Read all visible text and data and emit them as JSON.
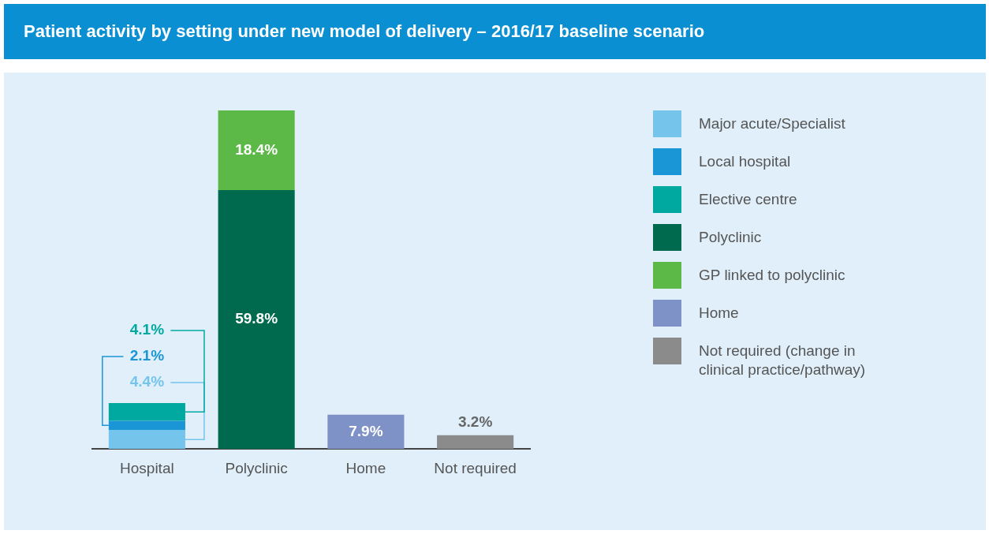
{
  "chart_data": {
    "type": "bar",
    "title": "Patient activity by setting under new model of delivery – 2016/17 baseline scenario",
    "categories": [
      "Hospital",
      "Polyclinic",
      "Home",
      "Not required"
    ],
    "stacked": true,
    "legend": "right",
    "grid": false,
    "series": [
      {
        "name": "Major acute/Specialist",
        "color": "#75c4ec",
        "values": [
          4.4,
          null,
          null,
          null
        ],
        "value_labels": [
          "4.4%",
          null,
          null,
          null
        ]
      },
      {
        "name": "Local hospital",
        "color": "#1a96d6",
        "values": [
          2.1,
          null,
          null,
          null
        ],
        "value_labels": [
          "2.1%",
          null,
          null,
          null
        ]
      },
      {
        "name": "Elective centre",
        "color": "#00a9a0",
        "values": [
          4.1,
          null,
          null,
          null
        ],
        "value_labels": [
          "4.1%",
          null,
          null,
          null
        ]
      },
      {
        "name": "Polyclinic",
        "color": "#006a4e",
        "values": [
          null,
          59.8,
          null,
          null
        ],
        "value_labels": [
          null,
          "59.8%",
          null,
          null
        ]
      },
      {
        "name": "GP linked to polyclinic",
        "color": "#5cb947",
        "values": [
          null,
          18.4,
          null,
          null
        ],
        "value_labels": [
          null,
          "18.4%",
          null,
          null
        ]
      },
      {
        "name": "Home",
        "color": "#7f92c8",
        "values": [
          null,
          null,
          7.9,
          null
        ],
        "value_labels": [
          null,
          null,
          "7.9%",
          null
        ]
      },
      {
        "name": "Not required (change in clinical practice/pathway)",
        "color": "#8b8b8b",
        "values": [
          null,
          null,
          null,
          3.2
        ],
        "value_labels": [
          null,
          null,
          null,
          "3.2%"
        ]
      }
    ]
  }
}
